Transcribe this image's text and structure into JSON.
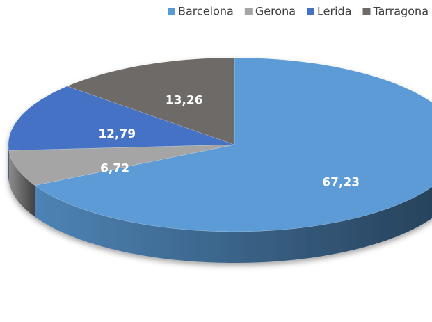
{
  "chart_data": {
    "type": "pie",
    "categories": [
      "Barcelona",
      "Gerona",
      "Lerida",
      "Tarragona"
    ],
    "values": [
      67.23,
      6.72,
      12.79,
      13.26
    ],
    "value_labels": [
      "67,23",
      "6,72",
      "12,79",
      "13,26"
    ],
    "colors": [
      "#5b9bd5",
      "#a5a5a5",
      "#4472c4",
      "#6e6a68"
    ],
    "legend": "top-right"
  }
}
